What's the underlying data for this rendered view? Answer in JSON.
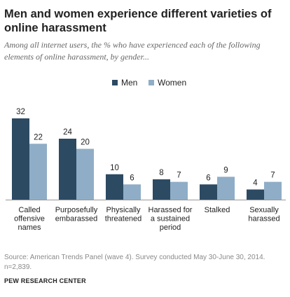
{
  "title": "Men and women experience different varieties of online harassment",
  "subtitle": "Among all internet users, the % who have experienced each of the following elements of online harassment, by gender...",
  "colors": {
    "men": "#2d4a63",
    "women": "#8fadc6",
    "axis": "#999999"
  },
  "chart_data": {
    "type": "bar",
    "title": "Men and women experience different varieties of online harassment",
    "categories": [
      [
        "Called",
        "offensive",
        "names"
      ],
      [
        "Purposefully",
        "embarassed"
      ],
      [
        "Physically",
        "threatened"
      ],
      [
        "Harassed for",
        "a sustained",
        "period"
      ],
      [
        "Stalked"
      ],
      [
        "Sexually",
        "harassed"
      ]
    ],
    "series": [
      {
        "name": "Men",
        "values": [
          32,
          24,
          10,
          8,
          6,
          4
        ]
      },
      {
        "name": "Women",
        "values": [
          22,
          20,
          6,
          7,
          9,
          7
        ]
      }
    ],
    "ylim": [
      0,
      32
    ],
    "grid": false,
    "legend_position": "top-center",
    "data_labels": true
  },
  "source": "Source: American Trends Panel (wave 4). Survey conducted May 30-June 30, 2014. n=2,839.",
  "organization": "PEW RESEARCH CENTER"
}
